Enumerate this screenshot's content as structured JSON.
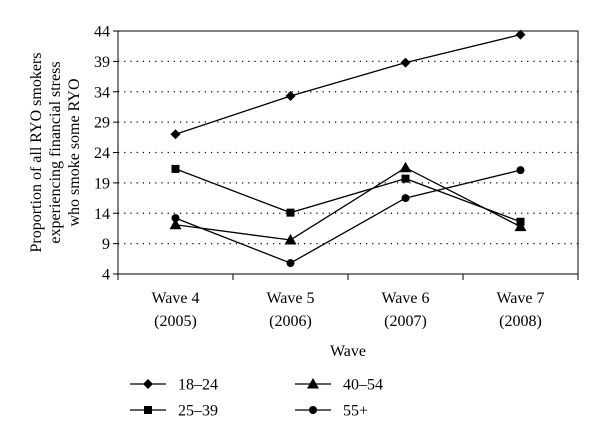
{
  "chart_data": {
    "type": "line",
    "title": "",
    "ylabel": "Proportion of all RYO smokers experiencing financial stress who smoke some RYO",
    "ylabel_lines": [
      "Proportion of all RYO smokers",
      "experiencing financial stress",
      "who smoke some RYO"
    ],
    "xlabel": "Wave",
    "categories": [
      {
        "line1": "Wave 4",
        "line2": "(2005)"
      },
      {
        "line1": "Wave 5",
        "line2": "(2006)"
      },
      {
        "line1": "Wave 6",
        "line2": "(2007)"
      },
      {
        "line1": "Wave 7",
        "line2": "(2008)"
      }
    ],
    "yticks": [
      "4",
      "9",
      "14",
      "19",
      "24",
      "29",
      "34",
      "39",
      "44"
    ],
    "ylim": [
      4,
      44
    ],
    "grid": "horizontal-dotted",
    "legend_position": "bottom",
    "series": [
      {
        "name": "18–24",
        "marker": "diamond",
        "values": [
          27.0,
          33.3,
          38.8,
          43.4
        ]
      },
      {
        "name": "25–39",
        "marker": "square",
        "values": [
          21.3,
          14.1,
          19.7,
          12.6
        ]
      },
      {
        "name": "40–54",
        "marker": "triangle",
        "values": [
          12.1,
          9.6,
          21.5,
          11.8
        ]
      },
      {
        "name": "55+",
        "marker": "circle",
        "values": [
          13.2,
          5.8,
          16.5,
          21.1
        ]
      }
    ]
  }
}
